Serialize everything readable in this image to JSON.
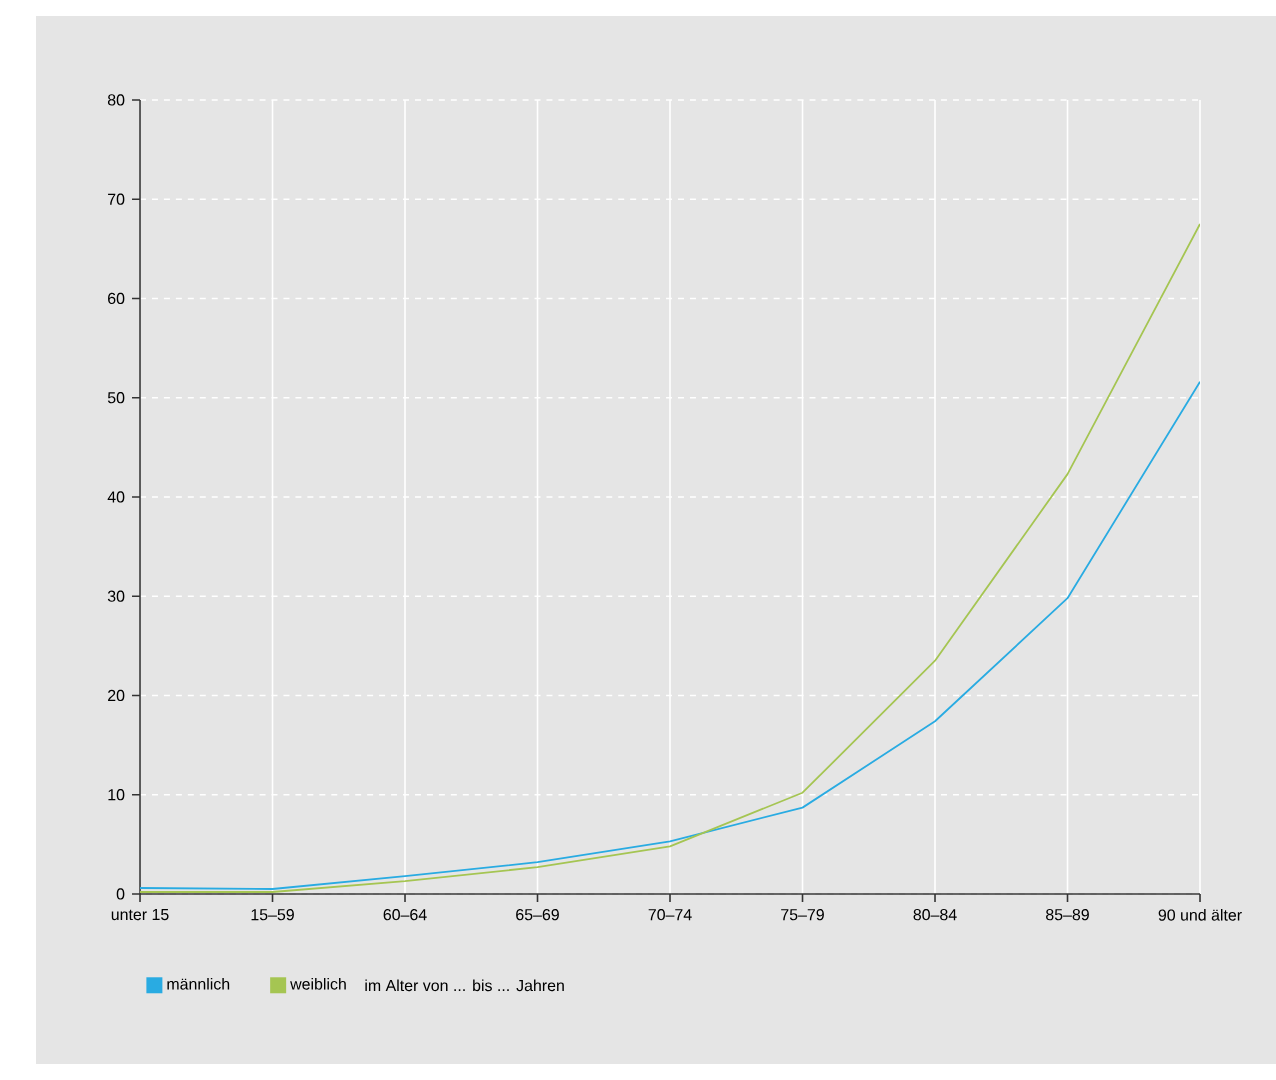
{
  "chart_data": {
    "type": "line",
    "xlabel": "im Alter von ... bis ... Jahren",
    "categories": [
      "unter 15",
      "15–59",
      "60–64",
      "65–69",
      "70–74",
      "75–79",
      "80–84",
      "85–89",
      "90 und älter"
    ],
    "series": [
      {
        "name": "männlich",
        "color": "#29abe2",
        "values": [
          0.6,
          0.5,
          1.8,
          3.2,
          5.3,
          8.7,
          17.4,
          29.8,
          51.6
        ]
      },
      {
        "name": "weiblich",
        "color": "#a5c552",
        "values": [
          0.2,
          0.2,
          1.3,
          2.7,
          4.8,
          10.2,
          23.5,
          42.3,
          67.5
        ]
      }
    ],
    "ylim": [
      0,
      80
    ],
    "yticks": [
      0,
      10,
      20,
      30,
      40,
      50,
      60,
      70,
      80
    ],
    "grid": true,
    "legend": "bottom",
    "marker": "none",
    "line_style": "solid"
  }
}
